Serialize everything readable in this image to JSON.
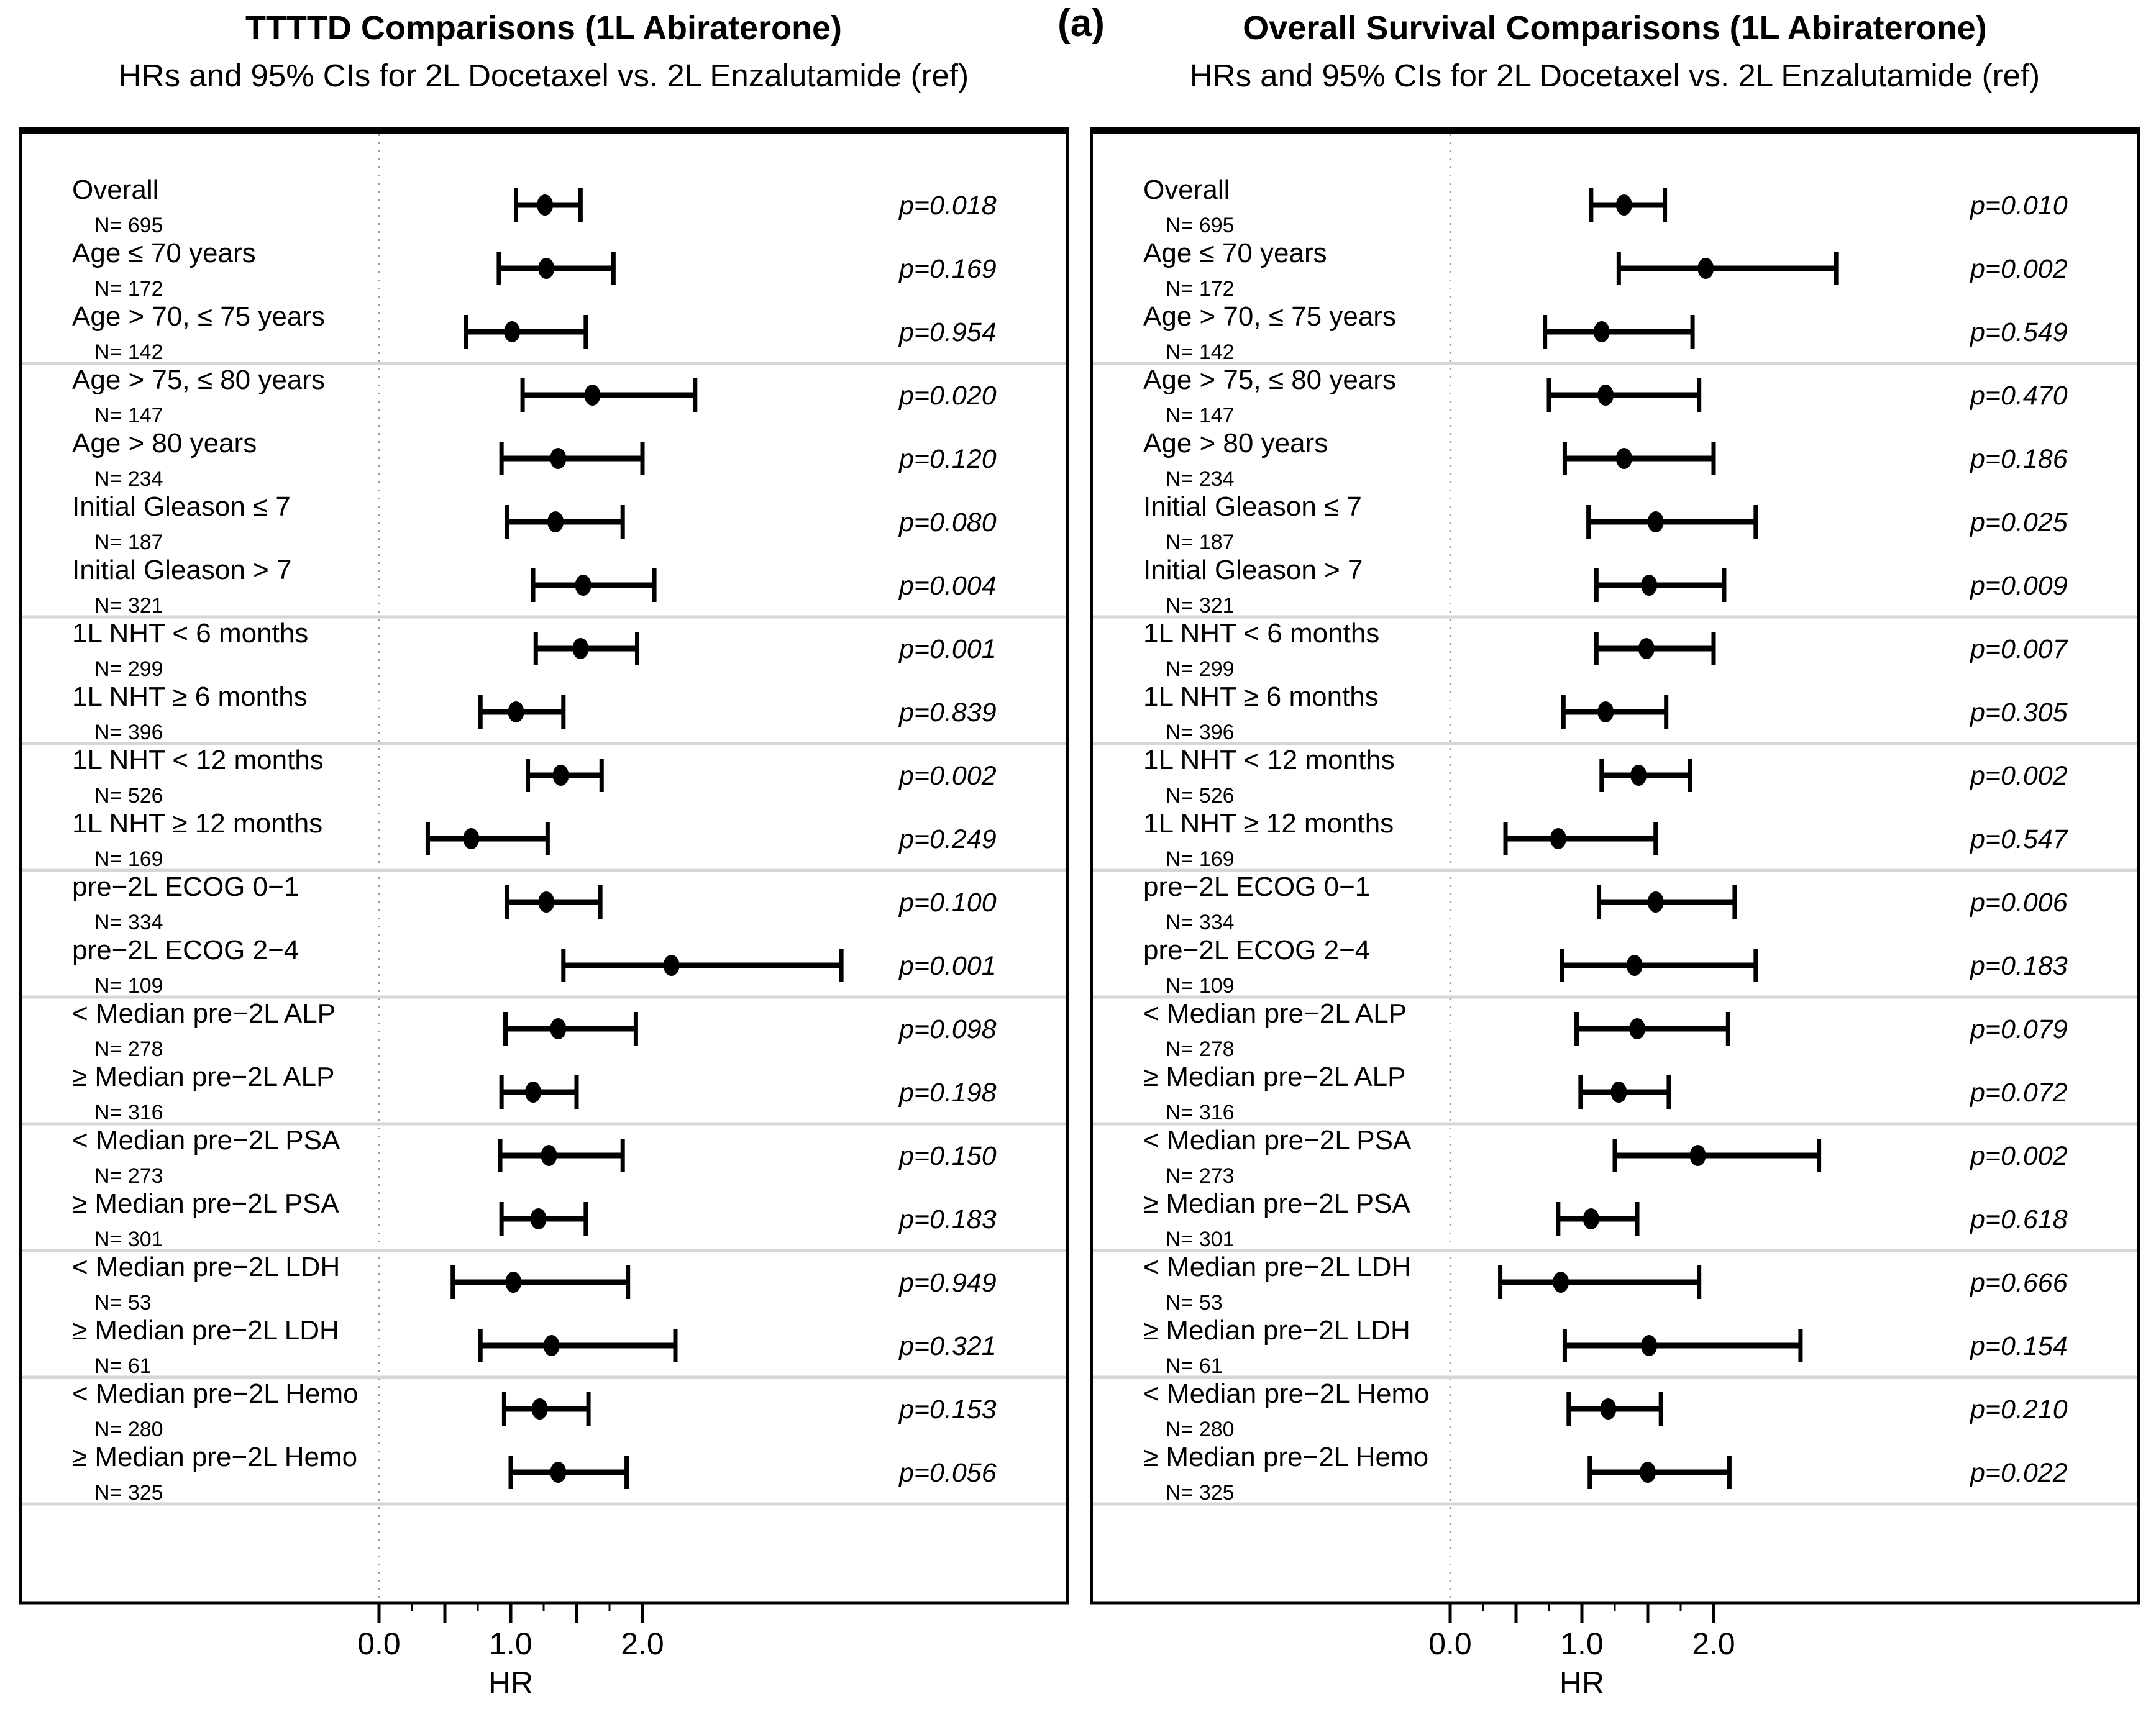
{
  "figure_label": "(a)",
  "colors": {
    "background": "#ffffff",
    "text": "#000000",
    "box_border": "#000000",
    "gridline_dotted": "#999999",
    "ref_line": "#b3b3b3",
    "group_separator": "#d6d6d6",
    "marker": "#000000"
  },
  "axis": {
    "xlabel": "HR",
    "xlim": [
      0,
      2
    ],
    "major_ticks": [
      0,
      0.5,
      1,
      1.5,
      2
    ],
    "minor_ticks": [
      0.25,
      0.75,
      1.25,
      1.75
    ],
    "tick_labels": [
      "0.0",
      "1.0",
      "2.0"
    ],
    "tick_label_values": [
      0,
      1,
      2
    ],
    "gridline_step": 0.25,
    "reference_line": 1.0
  },
  "layout": {
    "separators_after_rows": [
      3,
      7,
      9,
      11,
      13,
      15,
      17,
      19,
      21
    ],
    "legend": "none",
    "grid": "dotted-vertical"
  },
  "chart_data": [
    {
      "type": "forest",
      "title": "TTTTD Comparisons (1L Abiraterone)",
      "subtitle": "HRs and 95% CIs for 2L Docetaxel vs. 2L Enzalutamide (ref)",
      "xlabel": "HR",
      "rows": [
        {
          "label": "Overall",
          "n_label": "N= 695",
          "hr": 1.26,
          "ci_low": 1.04,
          "ci_high": 1.53,
          "p_label": "p=0.018"
        },
        {
          "label": "Age ≤ 70 years",
          "n_label": "N= 172",
          "hr": 1.27,
          "ci_low": 0.91,
          "ci_high": 1.78,
          "p_label": "p=0.169"
        },
        {
          "label": "Age > 70, ≤ 75 years",
          "n_label": "N= 142",
          "hr": 1.01,
          "ci_low": 0.66,
          "ci_high": 1.57,
          "p_label": "p=0.954"
        },
        {
          "label": "Age > 75, ≤ 80 years",
          "n_label": "N= 147",
          "hr": 1.62,
          "ci_low": 1.09,
          "ci_high": 2.4,
          "p_label": "p=0.020"
        },
        {
          "label": "Age > 80 years",
          "n_label": "N= 234",
          "hr": 1.36,
          "ci_low": 0.93,
          "ci_high": 2.0,
          "p_label": "p=0.120"
        },
        {
          "label": "Initial Gleason ≤ 7",
          "n_label": "N= 187",
          "hr": 1.34,
          "ci_low": 0.97,
          "ci_high": 1.85,
          "p_label": "p=0.080"
        },
        {
          "label": "Initial Gleason > 7",
          "n_label": "N= 321",
          "hr": 1.55,
          "ci_low": 1.17,
          "ci_high": 2.09,
          "p_label": "p=0.004"
        },
        {
          "label": "1L NHT < 6 months",
          "n_label": "N= 299",
          "hr": 1.53,
          "ci_low": 1.19,
          "ci_high": 1.96,
          "p_label": "p=0.001"
        },
        {
          "label": "1L NHT ≥ 6 months",
          "n_label": "N= 396",
          "hr": 1.04,
          "ci_low": 0.77,
          "ci_high": 1.4,
          "p_label": "p=0.839"
        },
        {
          "label": "1L NHT < 12 months",
          "n_label": "N= 526",
          "hr": 1.38,
          "ci_low": 1.13,
          "ci_high": 1.69,
          "p_label": "p=0.002"
        },
        {
          "label": "1L NHT ≥ 12 months",
          "n_label": "N= 169",
          "hr": 0.7,
          "ci_low": 0.37,
          "ci_high": 1.28,
          "p_label": "p=0.249"
        },
        {
          "label": "pre−2L ECOG 0−1",
          "n_label": "N= 334",
          "hr": 1.27,
          "ci_low": 0.97,
          "ci_high": 1.68,
          "p_label": "p=0.100"
        },
        {
          "label": "pre−2L ECOG 2−4",
          "n_label": "N= 109",
          "hr": 2.22,
          "ci_low": 1.4,
          "ci_high": 3.51,
          "p_label": "p=0.001"
        },
        {
          "label": "< Median pre−2L ALP",
          "n_label": "N= 278",
          "hr": 1.36,
          "ci_low": 0.96,
          "ci_high": 1.95,
          "p_label": "p=0.098"
        },
        {
          "label": "≥ Median pre−2L ALP",
          "n_label": "N= 316",
          "hr": 1.17,
          "ci_low": 0.93,
          "ci_high": 1.5,
          "p_label": "p=0.198"
        },
        {
          "label": "< Median pre−2L PSA",
          "n_label": "N= 273",
          "hr": 1.29,
          "ci_low": 0.92,
          "ci_high": 1.85,
          "p_label": "p=0.150"
        },
        {
          "label": "≥ Median pre−2L PSA",
          "n_label": "N= 301",
          "hr": 1.21,
          "ci_low": 0.93,
          "ci_high": 1.57,
          "p_label": "p=0.183"
        },
        {
          "label": "< Median pre−2L LDH",
          "n_label": "N= 53",
          "hr": 1.02,
          "ci_low": 0.56,
          "ci_high": 1.89,
          "p_label": "p=0.949"
        },
        {
          "label": "≥ Median pre−2L LDH",
          "n_label": "N= 61",
          "hr": 1.31,
          "ci_low": 0.77,
          "ci_high": 2.25,
          "p_label": "p=0.321"
        },
        {
          "label": "< Median pre−2L Hemo",
          "n_label": "N= 280",
          "hr": 1.22,
          "ci_low": 0.95,
          "ci_high": 1.59,
          "p_label": "p=0.153"
        },
        {
          "label": "≥ Median pre−2L Hemo",
          "n_label": "N= 325",
          "hr": 1.36,
          "ci_low": 1.0,
          "ci_high": 1.88,
          "p_label": "p=0.056"
        }
      ]
    },
    {
      "type": "forest",
      "title": "Overall Survival Comparisons (1L Abiraterone)",
      "subtitle": "HRs and 95% CIs for 2L Docetaxel vs. 2L Enzalutamide (ref)",
      "xlabel": "HR",
      "rows": [
        {
          "label": "Overall",
          "n_label": "N= 695",
          "hr": 1.32,
          "ci_low": 1.07,
          "ci_high": 1.63,
          "p_label": "p=0.010"
        },
        {
          "label": "Age ≤ 70 years",
          "n_label": "N= 172",
          "hr": 1.94,
          "ci_low": 1.28,
          "ci_high": 2.93,
          "p_label": "p=0.002"
        },
        {
          "label": "Age > 70, ≤ 75 years",
          "n_label": "N= 142",
          "hr": 1.15,
          "ci_low": 0.72,
          "ci_high": 1.84,
          "p_label": "p=0.549"
        },
        {
          "label": "Age > 75, ≤ 80 years",
          "n_label": "N= 147",
          "hr": 1.18,
          "ci_low": 0.75,
          "ci_high": 1.89,
          "p_label": "p=0.470"
        },
        {
          "label": "Age > 80 years",
          "n_label": "N= 234",
          "hr": 1.32,
          "ci_low": 0.87,
          "ci_high": 2.0,
          "p_label": "p=0.186"
        },
        {
          "label": "Initial Gleason ≤ 7",
          "n_label": "N= 187",
          "hr": 1.56,
          "ci_low": 1.05,
          "ci_high": 2.32,
          "p_label": "p=0.025"
        },
        {
          "label": "Initial Gleason > 7",
          "n_label": "N= 321",
          "hr": 1.51,
          "ci_low": 1.11,
          "ci_high": 2.08,
          "p_label": "p=0.009"
        },
        {
          "label": "1L NHT < 6 months",
          "n_label": "N= 299",
          "hr": 1.49,
          "ci_low": 1.11,
          "ci_high": 2.0,
          "p_label": "p=0.007"
        },
        {
          "label": "1L NHT ≥ 6 months",
          "n_label": "N= 396",
          "hr": 1.18,
          "ci_low": 0.86,
          "ci_high": 1.64,
          "p_label": "p=0.305"
        },
        {
          "label": "1L NHT < 12 months",
          "n_label": "N= 526",
          "hr": 1.43,
          "ci_low": 1.15,
          "ci_high": 1.82,
          "p_label": "p=0.002"
        },
        {
          "label": "1L NHT ≥ 12 months",
          "n_label": "N= 169",
          "hr": 0.82,
          "ci_low": 0.42,
          "ci_high": 1.56,
          "p_label": "p=0.547"
        },
        {
          "label": "pre−2L ECOG 0−1",
          "n_label": "N= 334",
          "hr": 1.56,
          "ci_low": 1.13,
          "ci_high": 2.16,
          "p_label": "p=0.006"
        },
        {
          "label": "pre−2L ECOG 2−4",
          "n_label": "N= 109",
          "hr": 1.4,
          "ci_low": 0.85,
          "ci_high": 2.32,
          "p_label": "p=0.183"
        },
        {
          "label": "< Median pre−2L ALP",
          "n_label": "N= 278",
          "hr": 1.42,
          "ci_low": 0.96,
          "ci_high": 2.11,
          "p_label": "p=0.079"
        },
        {
          "label": "≥ Median pre−2L ALP",
          "n_label": "N= 316",
          "hr": 1.28,
          "ci_low": 0.99,
          "ci_high": 1.66,
          "p_label": "p=0.072"
        },
        {
          "label": "< Median pre−2L PSA",
          "n_label": "N= 273",
          "hr": 1.88,
          "ci_low": 1.25,
          "ci_high": 2.8,
          "p_label": "p=0.002"
        },
        {
          "label": "≥ Median pre−2L PSA",
          "n_label": "N= 301",
          "hr": 1.07,
          "ci_low": 0.82,
          "ci_high": 1.42,
          "p_label": "p=0.618"
        },
        {
          "label": "< Median pre−2L LDH",
          "n_label": "N= 53",
          "hr": 0.84,
          "ci_low": 0.38,
          "ci_high": 1.89,
          "p_label": "p=0.666"
        },
        {
          "label": "≥ Median pre−2L LDH",
          "n_label": "N= 61",
          "hr": 1.51,
          "ci_low": 0.87,
          "ci_high": 2.66,
          "p_label": "p=0.154"
        },
        {
          "label": "< Median pre−2L Hemo",
          "n_label": "N= 280",
          "hr": 1.2,
          "ci_low": 0.9,
          "ci_high": 1.6,
          "p_label": "p=0.210"
        },
        {
          "label": "≥ Median pre−2L Hemo",
          "n_label": "N= 325",
          "hr": 1.5,
          "ci_low": 1.06,
          "ci_high": 2.12,
          "p_label": "p=0.022"
        }
      ]
    }
  ]
}
